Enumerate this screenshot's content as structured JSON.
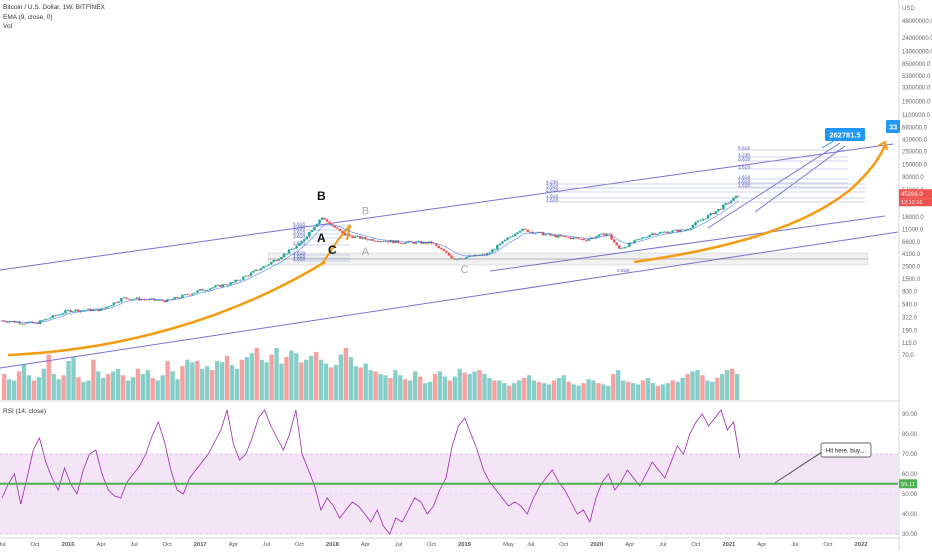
{
  "header": {
    "title": "Bitcoin / U.S. Dollar, 1W, BITFINEX",
    "ema_label": "EMA (9, close, 0)",
    "vol_label": "Vol",
    "rsi_label": "RSI (14, close)"
  },
  "colors": {
    "bull": "#26a69a",
    "bear": "#ef5350",
    "trendline": "#7b6fd6",
    "orange_curve": "#f39c12",
    "rsi_line": "#9c27b0",
    "rsi_band": "#f3e5f5",
    "green_line": "#4caf50",
    "label_blue": "#2196f3",
    "price_red": "#ef5350"
  },
  "chart_data": [
    {
      "type": "candlestick",
      "title": "Bitcoin / U.S. Dollar, 1W, BITFINEX",
      "scale": "log",
      "y_unit": "USD",
      "y_ticks": [
        "48000000.0",
        "USD",
        "24000000.0",
        "14000000.0",
        "8500000.0",
        "5300000.0",
        "3300000.0",
        "1900000.0",
        "1100000.0",
        "660000.0",
        "410000.0",
        "250000.0",
        "150000.0",
        "90000.0",
        "54000.0",
        "33000.0",
        "18000.0",
        "11000.0",
        "6600.0",
        "4100.0",
        "2500.0",
        "1500.0",
        "900.0",
        "540.0",
        "322.0",
        "190.0",
        "115.0",
        "70.0"
      ],
      "x_ticks": [
        "Jul",
        "Oct",
        "2016",
        "Apr",
        "Jul",
        "Oct",
        "2017",
        "Apr",
        "Jul",
        "Oct",
        "2018",
        "Apr",
        "Jul",
        "Oct",
        "2019",
        "May",
        "Jul",
        "Oct",
        "2020",
        "Apr",
        "Jul",
        "Oct",
        "2021",
        "Apr",
        "Jul",
        "Oct",
        "2022"
      ],
      "price_points": [
        {
          "date": "2015-07",
          "close": 280
        },
        {
          "date": "2015-10",
          "close": 250
        },
        {
          "date": "2016-01",
          "close": 420
        },
        {
          "date": "2016-04",
          "close": 440
        },
        {
          "date": "2016-06",
          "close": 700
        },
        {
          "date": "2016-10",
          "close": 620
        },
        {
          "date": "2017-01",
          "close": 950
        },
        {
          "date": "2017-04",
          "close": 1300
        },
        {
          "date": "2017-07",
          "close": 2600
        },
        {
          "date": "2017-10",
          "close": 6000
        },
        {
          "date": "2017-12",
          "close": 18000
        },
        {
          "date": "2018-02",
          "close": 9000
        },
        {
          "date": "2018-04",
          "close": 7500
        },
        {
          "date": "2018-07",
          "close": 6600
        },
        {
          "date": "2018-10",
          "close": 6400
        },
        {
          "date": "2018-12",
          "close": 3400
        },
        {
          "date": "2019-03",
          "close": 4000
        },
        {
          "date": "2019-06",
          "close": 11000
        },
        {
          "date": "2019-09",
          "close": 8500
        },
        {
          "date": "2019-12",
          "close": 7300
        },
        {
          "date": "2020-02",
          "close": 9500
        },
        {
          "date": "2020-03",
          "close": 5000
        },
        {
          "date": "2020-06",
          "close": 9300
        },
        {
          "date": "2020-09",
          "close": 10800
        },
        {
          "date": "2020-12",
          "close": 24000
        },
        {
          "date": "2021-02",
          "close": 45286
        }
      ],
      "current_price_label": "45286.0",
      "countdown_label": "12:12:16",
      "target_labels": [
        "262781.5",
        "33"
      ],
      "wave_labels": [
        {
          "text": "B",
          "date": "2017-12",
          "price": 36000,
          "style": "bold"
        },
        {
          "text": "B",
          "date": "2018-04",
          "price": 20000,
          "style": "gray"
        },
        {
          "text": "A",
          "date": "2017-12",
          "price": 6600,
          "style": "bold"
        },
        {
          "text": "C",
          "date": "2018-01",
          "price": 4100,
          "style": "bold"
        },
        {
          "text": "A",
          "date": "2018-04",
          "price": 3900,
          "style": "gray"
        },
        {
          "text": "C",
          "date": "2019-01",
          "price": 1900,
          "style": "gray"
        }
      ],
      "fib_left": [
        "5.618",
        "4.236",
        "3.618",
        "3.618",
        "2.618",
        "1.618",
        "1.618",
        "1.618"
      ],
      "fib_mid": [
        "4.236",
        "3.618",
        "2.618",
        "1.618",
        "1.618"
      ],
      "fib_mid_extra": "2.618",
      "fib_right": [
        "5.618",
        "4.236",
        "3.618",
        "2.618",
        "1.618",
        "1.618",
        "1.618"
      ],
      "volume": [
        40,
        32,
        30,
        44,
        55,
        38,
        30,
        35,
        48,
        70,
        40,
        32,
        38,
        60,
        66,
        35,
        28,
        30,
        62,
        44,
        34,
        40,
        44,
        48,
        38,
        30,
        35,
        48,
        40,
        46,
        34,
        30,
        38,
        60,
        44,
        32,
        52,
        62,
        58,
        60,
        48,
        52,
        46,
        60,
        58,
        68,
        54,
        48,
        62,
        66,
        72,
        80,
        62,
        58,
        70,
        80,
        56,
        66,
        76,
        72,
        58,
        62,
        68,
        74,
        62,
        56,
        50,
        54,
        70,
        80,
        66,
        52,
        50,
        56,
        46,
        44,
        40,
        38,
        34,
        46,
        38,
        32,
        30,
        44,
        36,
        26,
        28,
        40,
        44,
        36,
        30,
        36,
        48,
        42,
        40,
        44,
        46,
        40,
        34,
        30,
        30,
        26,
        22,
        26,
        30,
        34,
        38,
        30,
        28,
        26,
        24,
        30,
        34,
        38,
        28,
        24,
        22,
        26,
        32,
        30,
        26,
        24,
        22,
        40,
        46,
        30,
        28,
        26,
        24,
        30,
        34,
        26,
        22,
        24,
        26,
        30,
        28,
        34,
        40,
        44,
        46,
        38,
        30,
        28,
        34,
        40,
        46,
        48,
        40
      ]
    },
    {
      "type": "line",
      "title": "RSI (14, close)",
      "y_ticks": [
        "90.00",
        "80.00",
        "70.00",
        "60.00",
        "50.00",
        "40.00",
        "30.00"
      ],
      "band": [
        30,
        70
      ],
      "level_line": 55.11,
      "level_label": "55.11",
      "annotation": "Hit here, buy....",
      "values": [
        48,
        55,
        60,
        45,
        58,
        72,
        78,
        66,
        58,
        52,
        63,
        55,
        50,
        62,
        70,
        72,
        60,
        52,
        49,
        48,
        56,
        60,
        64,
        70,
        79,
        86,
        76,
        62,
        52,
        50,
        58,
        62,
        66,
        70,
        76,
        82,
        92,
        75,
        67,
        70,
        78,
        88,
        92,
        84,
        78,
        72,
        80,
        92,
        70,
        62,
        54,
        42,
        48,
        44,
        38,
        42,
        46,
        44,
        40,
        36,
        42,
        34,
        30,
        38,
        36,
        42,
        48,
        46,
        40,
        44,
        52,
        58,
        74,
        84,
        88,
        80,
        72,
        62,
        56,
        52,
        48,
        44,
        46,
        44,
        40,
        48,
        54,
        58,
        62,
        56,
        52,
        46,
        40,
        42,
        36,
        48,
        56,
        60,
        52,
        56,
        62,
        58,
        54,
        60,
        66,
        62,
        58,
        66,
        74,
        70,
        80,
        86,
        90,
        84,
        88,
        92,
        82,
        86,
        68
      ]
    }
  ]
}
